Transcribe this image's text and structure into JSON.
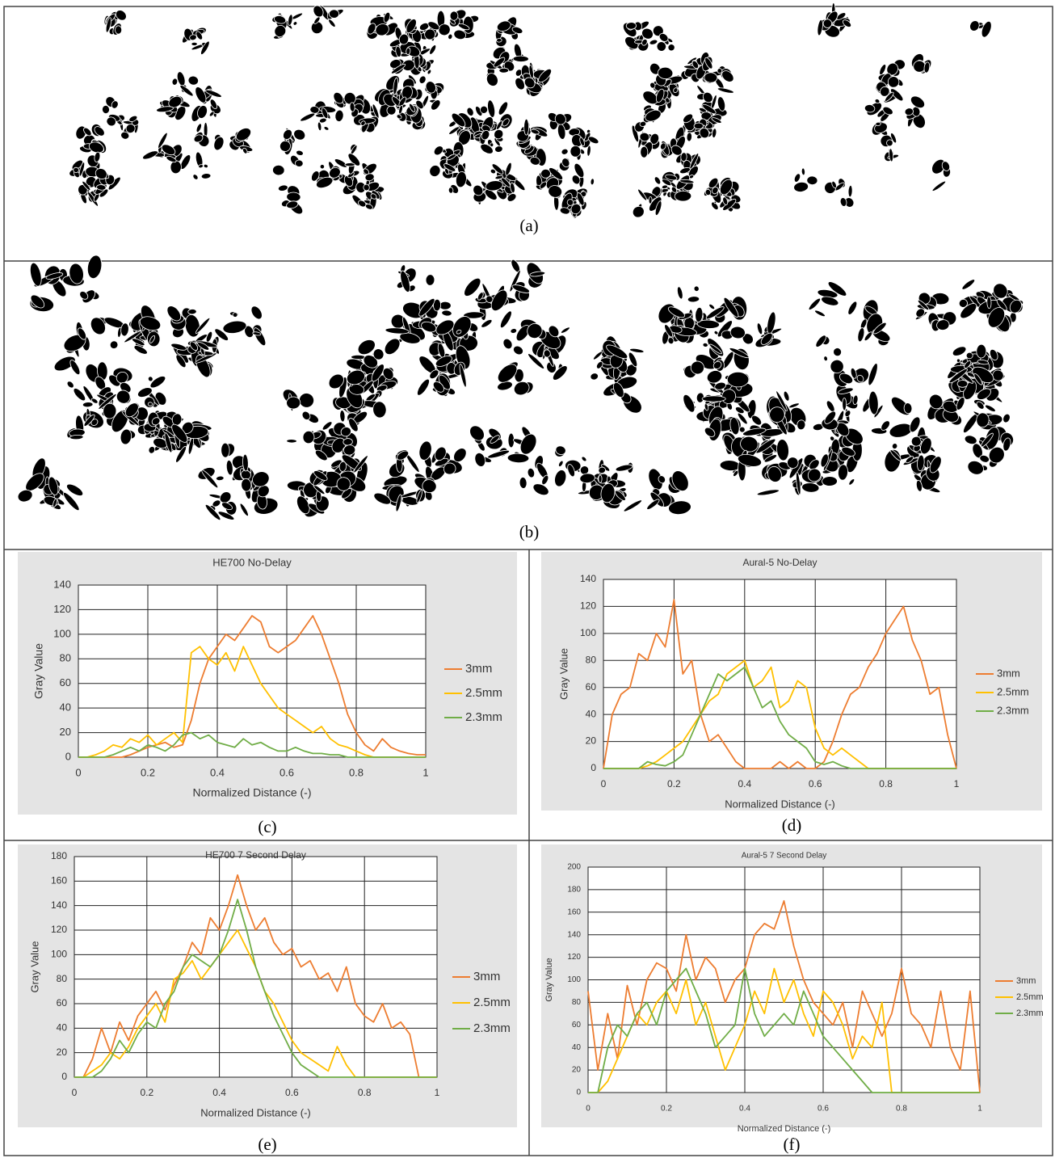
{
  "image_panels": [
    {
      "label": "(a)"
    },
    {
      "label": "(b)"
    }
  ],
  "chart_data": [
    {
      "type": "line",
      "label": "(c)",
      "title": "HE700 No-Delay",
      "x_label": "Normalized Distance (-)",
      "y_label": "Gray Value",
      "x": [
        0,
        0.025,
        0.05,
        0.075,
        0.1,
        0.125,
        0.15,
        0.175,
        0.2,
        0.225,
        0.25,
        0.275,
        0.3,
        0.325,
        0.35,
        0.375,
        0.4,
        0.425,
        0.45,
        0.475,
        0.5,
        0.525,
        0.55,
        0.575,
        0.6,
        0.625,
        0.65,
        0.675,
        0.7,
        0.725,
        0.75,
        0.775,
        0.8,
        0.825,
        0.85,
        0.875,
        0.9,
        0.925,
        0.95,
        0.975,
        1
      ],
      "xlim": [
        0,
        1
      ],
      "xticks": [
        0,
        0.2,
        0.4,
        0.6,
        0.8,
        1
      ],
      "ylim": [
        0,
        140
      ],
      "yticks": [
        0,
        20,
        40,
        60,
        80,
        100,
        120,
        140
      ],
      "grid": true,
      "legend": "right",
      "series": [
        {
          "name": "3mm",
          "color": "#ed7d31",
          "values": [
            0,
            0,
            0,
            0,
            0,
            0,
            2,
            5,
            8,
            10,
            12,
            8,
            10,
            30,
            60,
            80,
            90,
            100,
            95,
            105,
            115,
            110,
            90,
            85,
            90,
            95,
            105,
            115,
            100,
            80,
            60,
            35,
            20,
            10,
            5,
            15,
            8,
            5,
            3,
            2,
            2
          ]
        },
        {
          "name": "2.5mm",
          "color": "#ffc000",
          "values": [
            0,
            0,
            2,
            5,
            10,
            8,
            15,
            12,
            18,
            10,
            15,
            20,
            12,
            85,
            90,
            80,
            75,
            85,
            70,
            90,
            75,
            60,
            50,
            40,
            35,
            30,
            25,
            20,
            25,
            15,
            10,
            8,
            5,
            2,
            0,
            0,
            0,
            0,
            0,
            0,
            0
          ]
        },
        {
          "name": "2.3mm",
          "color": "#70ad47",
          "values": [
            0,
            0,
            0,
            0,
            2,
            5,
            8,
            5,
            10,
            8,
            5,
            10,
            18,
            20,
            15,
            18,
            12,
            10,
            8,
            15,
            10,
            12,
            8,
            5,
            5,
            8,
            5,
            3,
            3,
            2,
            2,
            0,
            0,
            0,
            0,
            0,
            0,
            0,
            0,
            0,
            0
          ]
        }
      ]
    },
    {
      "type": "line",
      "label": "(d)",
      "title": "Aural-5 No-Delay",
      "x_label": "Normalized Distance (-)",
      "y_label": "Gray Value",
      "x": [
        0,
        0.025,
        0.05,
        0.075,
        0.1,
        0.125,
        0.15,
        0.175,
        0.2,
        0.225,
        0.25,
        0.275,
        0.3,
        0.325,
        0.35,
        0.375,
        0.4,
        0.425,
        0.45,
        0.475,
        0.5,
        0.525,
        0.55,
        0.575,
        0.6,
        0.625,
        0.65,
        0.675,
        0.7,
        0.725,
        0.75,
        0.775,
        0.8,
        0.825,
        0.85,
        0.875,
        0.9,
        0.925,
        0.95,
        0.975,
        1
      ],
      "xlim": [
        0,
        1
      ],
      "xticks": [
        0,
        0.2,
        0.4,
        0.6,
        0.8,
        1
      ],
      "ylim": [
        0,
        140
      ],
      "yticks": [
        0,
        20,
        40,
        60,
        80,
        100,
        120,
        140
      ],
      "grid": true,
      "legend": "right",
      "series": [
        {
          "name": "3mm",
          "color": "#ed7d31",
          "values": [
            0,
            40,
            55,
            60,
            85,
            80,
            100,
            90,
            125,
            70,
            80,
            40,
            20,
            25,
            15,
            5,
            0,
            0,
            0,
            0,
            5,
            0,
            5,
            0,
            0,
            5,
            20,
            40,
            55,
            60,
            75,
            85,
            100,
            110,
            120,
            95,
            80,
            55,
            60,
            25,
            0
          ]
        },
        {
          "name": "2.5mm",
          "color": "#ffc000",
          "values": [
            0,
            0,
            0,
            0,
            0,
            2,
            5,
            10,
            15,
            20,
            30,
            40,
            50,
            55,
            70,
            75,
            80,
            60,
            65,
            75,
            45,
            50,
            65,
            60,
            30,
            15,
            10,
            15,
            10,
            5,
            0,
            0,
            0,
            0,
            0,
            0,
            0,
            0,
            0,
            0,
            0
          ]
        },
        {
          "name": "2.3mm",
          "color": "#70ad47",
          "values": [
            0,
            0,
            0,
            0,
            0,
            5,
            3,
            2,
            5,
            10,
            25,
            40,
            55,
            70,
            65,
            70,
            75,
            60,
            45,
            50,
            35,
            25,
            20,
            15,
            5,
            3,
            5,
            2,
            0,
            0,
            0,
            0,
            0,
            0,
            0,
            0,
            0,
            0,
            0,
            0,
            0
          ]
        }
      ]
    },
    {
      "type": "line",
      "label": "(e)",
      "title": "HE700 7 Second Delay",
      "x_label": "Normalized Distance (-)",
      "y_label": "Gray Value",
      "x": [
        0,
        0.025,
        0.05,
        0.075,
        0.1,
        0.125,
        0.15,
        0.175,
        0.2,
        0.225,
        0.25,
        0.275,
        0.3,
        0.325,
        0.35,
        0.375,
        0.4,
        0.425,
        0.45,
        0.475,
        0.5,
        0.525,
        0.55,
        0.575,
        0.6,
        0.625,
        0.65,
        0.675,
        0.7,
        0.725,
        0.75,
        0.775,
        0.8,
        0.825,
        0.85,
        0.875,
        0.9,
        0.925,
        0.95,
        0.975,
        1
      ],
      "xlim": [
        0,
        1
      ],
      "xticks": [
        0,
        0.2,
        0.4,
        0.6,
        0.8,
        1
      ],
      "ylim": [
        0,
        180
      ],
      "yticks": [
        0,
        20,
        40,
        60,
        80,
        100,
        120,
        140,
        160,
        180
      ],
      "grid": true,
      "legend": "right",
      "series": [
        {
          "name": "3mm",
          "color": "#ed7d31",
          "values": [
            0,
            0,
            15,
            40,
            20,
            45,
            30,
            50,
            60,
            70,
            55,
            75,
            90,
            110,
            100,
            130,
            120,
            140,
            165,
            140,
            120,
            130,
            110,
            100,
            105,
            90,
            95,
            80,
            85,
            70,
            90,
            60,
            50,
            45,
            60,
            40,
            45,
            35,
            0,
            0,
            0
          ]
        },
        {
          "name": "2.5mm",
          "color": "#ffc000",
          "values": [
            0,
            0,
            5,
            10,
            20,
            15,
            25,
            40,
            50,
            60,
            45,
            80,
            85,
            95,
            80,
            90,
            100,
            110,
            120,
            105,
            90,
            70,
            60,
            45,
            30,
            20,
            15,
            10,
            5,
            25,
            10,
            0,
            0,
            0,
            0,
            0,
            0,
            0,
            0,
            0,
            0
          ]
        },
        {
          "name": "2.3mm",
          "color": "#70ad47",
          "values": [
            0,
            0,
            0,
            5,
            15,
            30,
            20,
            35,
            45,
            40,
            60,
            70,
            90,
            100,
            95,
            90,
            100,
            120,
            145,
            120,
            90,
            70,
            50,
            35,
            20,
            10,
            5,
            0,
            0,
            0,
            0,
            0,
            0,
            0,
            0,
            0,
            0,
            0,
            0,
            0,
            0
          ]
        }
      ]
    },
    {
      "type": "line",
      "label": "(f)",
      "title": "Aural-5 7 Second Delay",
      "x_label": "Normalized Distance (-)",
      "y_label": "Gray Value",
      "x": [
        0,
        0.025,
        0.05,
        0.075,
        0.1,
        0.125,
        0.15,
        0.175,
        0.2,
        0.225,
        0.25,
        0.275,
        0.3,
        0.325,
        0.35,
        0.375,
        0.4,
        0.425,
        0.45,
        0.475,
        0.5,
        0.525,
        0.55,
        0.575,
        0.6,
        0.625,
        0.65,
        0.675,
        0.7,
        0.725,
        0.75,
        0.775,
        0.8,
        0.825,
        0.85,
        0.875,
        0.9,
        0.925,
        0.95,
        0.975,
        1
      ],
      "xlim": [
        0,
        1
      ],
      "xticks": [
        0,
        0.2,
        0.4,
        0.6,
        0.8,
        1
      ],
      "ylim": [
        0,
        200
      ],
      "yticks": [
        0,
        20,
        40,
        60,
        80,
        100,
        120,
        140,
        160,
        180,
        200
      ],
      "grid": true,
      "legend": "right",
      "series": [
        {
          "name": "3mm",
          "color": "#ed7d31",
          "values": [
            90,
            20,
            70,
            30,
            95,
            60,
            100,
            115,
            110,
            90,
            140,
            100,
            120,
            110,
            80,
            100,
            110,
            140,
            150,
            145,
            170,
            130,
            100,
            80,
            70,
            60,
            80,
            40,
            90,
            70,
            50,
            70,
            110,
            70,
            60,
            40,
            90,
            40,
            20,
            90,
            0
          ]
        },
        {
          "name": "2.5mm",
          "color": "#ffc000",
          "values": [
            0,
            0,
            10,
            30,
            50,
            70,
            60,
            80,
            90,
            70,
            100,
            60,
            80,
            50,
            20,
            40,
            60,
            90,
            70,
            110,
            80,
            100,
            70,
            50,
            90,
            80,
            60,
            30,
            50,
            40,
            80,
            0,
            0,
            0,
            0,
            0,
            0,
            0,
            0,
            0,
            0
          ]
        },
        {
          "name": "2.3mm",
          "color": "#70ad47",
          "values": [
            0,
            0,
            40,
            60,
            50,
            70,
            80,
            60,
            90,
            100,
            110,
            90,
            70,
            40,
            50,
            60,
            110,
            70,
            50,
            60,
            70,
            60,
            90,
            70,
            50,
            40,
            30,
            20,
            10,
            0,
            0,
            0,
            0,
            0,
            0,
            0,
            0,
            0,
            0,
            0,
            0
          ]
        }
      ]
    }
  ]
}
